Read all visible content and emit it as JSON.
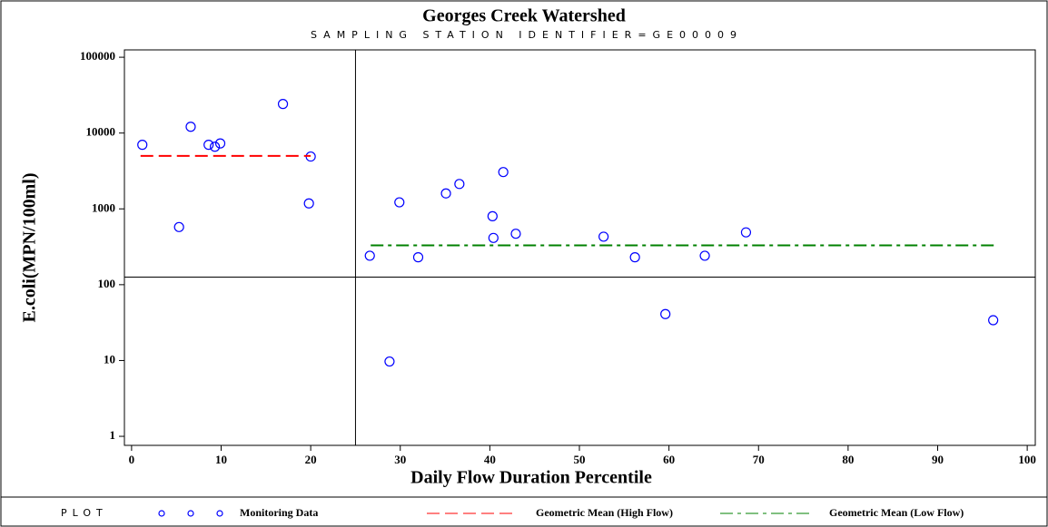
{
  "chart_data": {
    "type": "scatter",
    "title": "Georges Creek Watershed",
    "subtitle": "SAMPLING STATION IDENTIFIER=GE00009",
    "x_label": "Daily Flow Duration Percentile",
    "y_label": "E.coli(MPN/100ml)",
    "legend_title": "PLOT",
    "xlim": [
      -0.8,
      100.9
    ],
    "xticks": [
      0,
      10,
      20,
      30,
      40,
      50,
      60,
      70,
      80,
      90,
      100
    ],
    "ylim": [
      0.76,
      125000
    ],
    "yticks": [
      1,
      10,
      100,
      1000,
      10000,
      100000
    ],
    "y_log": true,
    "reference_lines": {
      "x": 25,
      "y": 126
    },
    "legend_position": "bottom",
    "series": [
      {
        "name": "Monitoring Data",
        "color": "#0000ff",
        "style": "marker",
        "x": [
          1.2,
          5.3,
          6.6,
          8.6,
          9.3,
          9.9,
          16.9,
          19.8,
          20.0,
          26.6,
          28.8,
          29.9,
          32.0,
          35.1,
          36.6,
          40.3,
          40.4,
          41.5,
          42.9,
          52.7,
          56.2,
          59.6,
          64.0,
          68.6,
          96.2
        ],
        "values": [
          7000,
          576,
          12100,
          7000,
          6600,
          7300,
          24200,
          1180,
          4900,
          241,
          9.7,
          1220,
          230,
          1600,
          2130,
          800,
          414,
          3060,
          470,
          430,
          230,
          41,
          241,
          490,
          34
        ]
      },
      {
        "name": "Geometric Mean (High Flow)",
        "color": "#ff0000",
        "style": "dashed",
        "x": [
          1.0,
          20.0
        ],
        "values": [
          5000,
          5000
        ]
      },
      {
        "name": "Geometric Mean (Low Flow)",
        "color": "#008000",
        "style": "dashdot",
        "x": [
          26.7,
          96.3
        ],
        "values": [
          330,
          330
        ]
      }
    ]
  }
}
